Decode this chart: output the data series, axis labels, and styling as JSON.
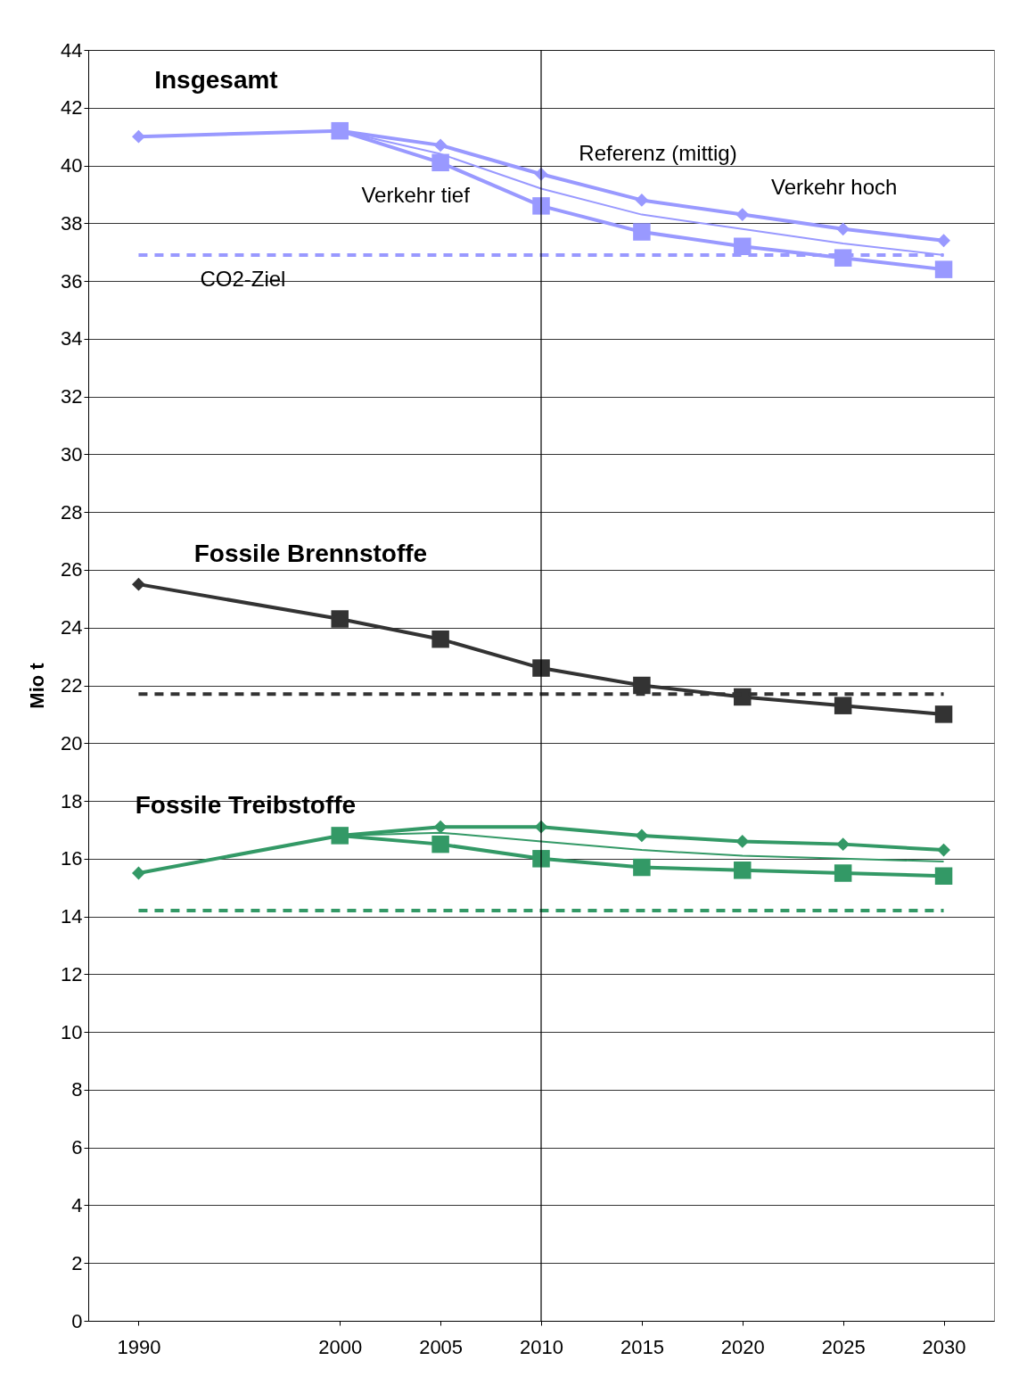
{
  "chart_data": {
    "type": "line",
    "ylabel": "Mio t",
    "xlim": [
      1987.5,
      2032.5
    ],
    "xticks": [
      1990,
      2000,
      2005,
      2010,
      2015,
      2020,
      2025,
      2030
    ],
    "ylim": [
      0,
      44
    ],
    "yticks": [
      0,
      2,
      4,
      6,
      8,
      10,
      12,
      14,
      16,
      18,
      20,
      22,
      24,
      26,
      28,
      30,
      32,
      34,
      36,
      38,
      40,
      42,
      44
    ],
    "grid": "y",
    "series": [
      {
        "color": "#9999ff",
        "marker": "diamond",
        "x": [
          1990,
          2000,
          2005,
          2010,
          2015,
          2020,
          2025,
          2030
        ],
        "values": [
          41.0,
          41.2,
          40.7,
          39.7,
          38.8,
          38.3,
          37.8,
          37.4
        ]
      },
      {
        "color": "#9999ff",
        "marker": "none",
        "x": [
          2000,
          2005,
          2010,
          2015,
          2020,
          2025,
          2030
        ],
        "values": [
          41.2,
          40.4,
          39.2,
          38.3,
          37.8,
          37.3,
          36.9
        ]
      },
      {
        "color": "#9999ff",
        "marker": "square",
        "x": [
          2000,
          2005,
          2010,
          2015,
          2020,
          2025,
          2030
        ],
        "values": [
          41.2,
          40.1,
          38.6,
          37.7,
          37.2,
          36.8,
          36.4
        ]
      },
      {
        "color": "#9999ff",
        "marker": "none",
        "line_style": "dashed",
        "x": [
          1990,
          2030
        ],
        "values": [
          36.9,
          36.9
        ]
      },
      {
        "color": "#333333",
        "marker": "square",
        "x": [
          2000,
          2005,
          2010,
          2015,
          2020,
          2025,
          2030
        ],
        "values": [
          24.3,
          23.6,
          22.6,
          22.0,
          21.6,
          21.3,
          21.0
        ]
      },
      {
        "color": "#333333",
        "marker": "diamond",
        "x": [
          1990,
          2000
        ],
        "values": [
          25.5,
          24.3
        ]
      },
      {
        "color": "#333333",
        "marker": "none",
        "line_style": "dashed",
        "x": [
          1990,
          2030
        ],
        "values": [
          21.7,
          21.7
        ]
      },
      {
        "color": "#339966",
        "marker": "diamond",
        "x": [
          1990,
          2000,
          2005,
          2010,
          2015,
          2020,
          2025,
          2030
        ],
        "values": [
          15.5,
          16.8,
          17.1,
          17.1,
          16.8,
          16.6,
          16.5,
          16.3
        ]
      },
      {
        "color": "#339966",
        "marker": "none",
        "x": [
          2000,
          2005,
          2010,
          2015,
          2020,
          2025,
          2030
        ],
        "values": [
          16.8,
          16.9,
          16.6,
          16.3,
          16.1,
          16.0,
          15.9
        ]
      },
      {
        "color": "#339966",
        "marker": "square",
        "x": [
          2000,
          2005,
          2010,
          2015,
          2020,
          2025,
          2030
        ],
        "values": [
          16.8,
          16.5,
          16.0,
          15.7,
          15.6,
          15.5,
          15.4
        ]
      },
      {
        "color": "#339966",
        "marker": "none",
        "line_style": "dashed",
        "x": [
          1990,
          2030
        ],
        "values": [
          14.2,
          14.2
        ]
      }
    ],
    "ref_lines": [
      {
        "axis": "x",
        "value": 2010,
        "color": "#000000"
      }
    ],
    "annotations": [
      {
        "text": "Insgesamt",
        "x": 1990,
        "y": 41.0
      },
      {
        "text": "Referenz (mittig)",
        "x": 2010,
        "y": 39.7
      },
      {
        "text": "Verkehr hoch",
        "x": 2025,
        "y": 37.8
      },
      {
        "text": "Verkehr tief",
        "x": 2005,
        "y": 40.1
      },
      {
        "text": "CO2-Ziel",
        "x": 1990,
        "y": 36.9
      },
      {
        "text": "Fossile Brennstoffe",
        "x": 1990,
        "y": 25.5
      },
      {
        "text": "Fossile Treibstoffe",
        "x": 1990,
        "y": 15.5
      }
    ]
  }
}
